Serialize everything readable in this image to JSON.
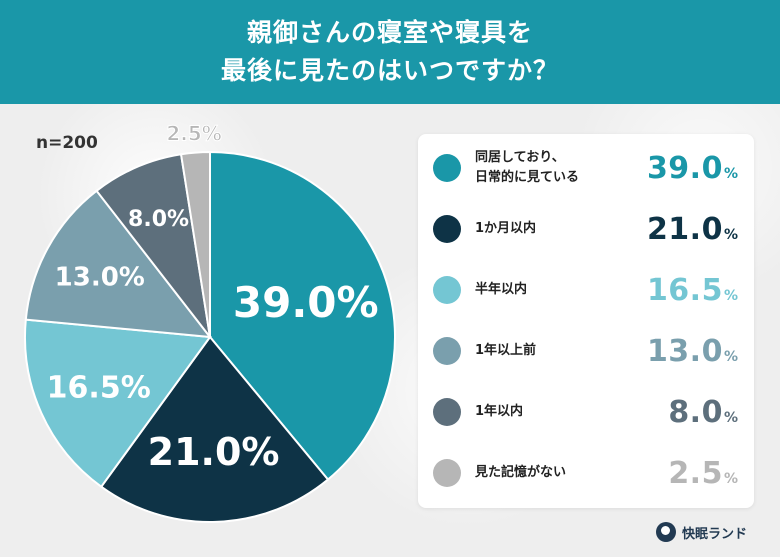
{
  "header": {
    "title_line1": "親御さんの寝室や寝具を",
    "title_line2": "最後に見たのはいつですか？",
    "bg_color": "#1a97a8"
  },
  "sample_size": "n=200",
  "legend": {
    "items": [
      {
        "label": "同居しており、\n日常的に見ている",
        "value": "39.0",
        "unit": "%"
      },
      {
        "label": "1か月以内",
        "value": "21.0",
        "unit": "%"
      },
      {
        "label": "半年以内",
        "value": "16.5",
        "unit": "%"
      },
      {
        "label": "1年以上前",
        "value": "13.0",
        "unit": "%"
      },
      {
        "label": "1年以内",
        "value": "8.0",
        "unit": "%"
      },
      {
        "label": "見た記憶がない",
        "value": "2.5",
        "unit": "%"
      }
    ]
  },
  "brand": {
    "name": "快眠ランド",
    "icon": "moon-logo-icon"
  },
  "chart_data": {
    "type": "pie",
    "title": "親御さんの寝室や寝具を最後に見たのはいつですか？",
    "categories": [
      "同居しており、日常的に見ている",
      "1か月以内",
      "半年以内",
      "1年以上前",
      "1年以内",
      "見た記憶がない"
    ],
    "values": [
      39.0,
      21.0,
      16.5,
      13.0,
      8.0,
      2.5
    ],
    "labels": [
      "39.0%",
      "21.0%",
      "16.5%",
      "13.0%",
      "8.0%",
      "2.5%"
    ],
    "colors": [
      "#1a97a8",
      "#0e3346",
      "#74c6d3",
      "#7a9fad",
      "#5d6f7c",
      "#b6b6b6"
    ],
    "value_text_colors": [
      "#1a97a8",
      "#0e3346",
      "#74c6d3",
      "#7a9fad",
      "#5d6f7c",
      "#b6b6b6"
    ],
    "start": "12 o'clock",
    "direction": "clockwise",
    "legend_position": "right"
  }
}
